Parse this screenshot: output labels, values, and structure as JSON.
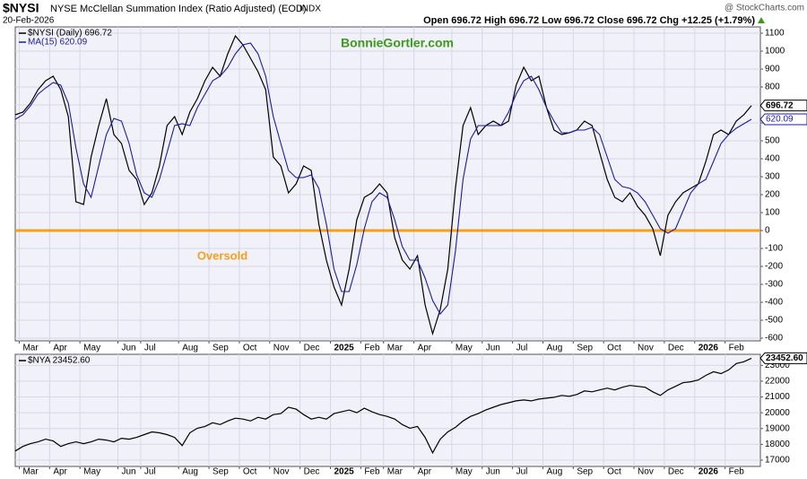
{
  "header": {
    "symbol": "$NYSI",
    "name": "NYSE McClellan Summation Index (Ratio Adjusted) (EOD)",
    "exchange": "INDX",
    "date": "20-Feb-2026",
    "source": "@ StockCharts.com",
    "quote": "Open 696.72   High 696.72   Low 696.72   Close 696.72   Chg +12.25 (+1.79%)"
  },
  "chart_data": [
    {
      "type": "line",
      "categories": [
        null,
        "Mar",
        null,
        null,
        null,
        "Apr",
        null,
        null,
        null,
        "May",
        null,
        null,
        null,
        null,
        "Jun",
        null,
        null,
        "Jul",
        null,
        null,
        null,
        null,
        "Aug",
        null,
        null,
        null,
        "Sep",
        null,
        null,
        null,
        "Oct",
        null,
        null,
        null,
        "Nov",
        null,
        null,
        null,
        "Dec",
        null,
        null,
        null,
        "2025",
        null,
        null,
        null,
        "Feb",
        null,
        null,
        "Mar",
        null,
        null,
        null,
        "Apr",
        null,
        null,
        null,
        null,
        "May",
        null,
        null,
        null,
        "Jun",
        null,
        null,
        null,
        "Jul",
        null,
        null,
        null,
        "Aug",
        null,
        null,
        null,
        "Sep",
        null,
        null,
        null,
        "Oct",
        null,
        null,
        null,
        "Nov",
        null,
        null,
        null,
        "Dec",
        null,
        null,
        null,
        "2026",
        null,
        null,
        null,
        "Feb",
        null,
        null,
        null
      ],
      "series": [
        {
          "name": "$NYSI (Daily) 696.72",
          "color": "#000000",
          "values": [
            645,
            660,
            710,
            785,
            835,
            860,
            785,
            635,
            160,
            145,
            410,
            585,
            735,
            535,
            485,
            335,
            285,
            145,
            210,
            360,
            585,
            635,
            535,
            660,
            735,
            835,
            910,
            860,
            985,
            1085,
            1035,
            960,
            885,
            785,
            410,
            360,
            210,
            260,
            360,
            335,
            35,
            -165,
            -315,
            -415,
            -215,
            60,
            185,
            210,
            260,
            210,
            -40,
            -165,
            -215,
            -140,
            -415,
            -575,
            -440,
            -215,
            235,
            585,
            685,
            535,
            585,
            610,
            585,
            610,
            810,
            910,
            835,
            860,
            685,
            560,
            535,
            545,
            560,
            610,
            585,
            435,
            285,
            185,
            160,
            210,
            135,
            85,
            10,
            -140,
            85,
            160,
            210,
            235,
            260,
            385,
            535,
            560,
            535,
            610,
            645,
            696.72
          ]
        },
        {
          "name": "MA(15) 620.09",
          "color": "#1c1c9c",
          "values": [
            620,
            645,
            695,
            760,
            795,
            825,
            810,
            710,
            460,
            260,
            185,
            360,
            535,
            625,
            610,
            485,
            310,
            210,
            185,
            285,
            435,
            585,
            595,
            585,
            685,
            760,
            835,
            860,
            910,
            985,
            1035,
            1045,
            985,
            860,
            635,
            485,
            335,
            295,
            295,
            310,
            235,
            35,
            -215,
            -340,
            -340,
            -190,
            10,
            160,
            210,
            185,
            60,
            -90,
            -165,
            -165,
            -265,
            -390,
            -465,
            -415,
            -115,
            285,
            510,
            585,
            585,
            585,
            585,
            660,
            760,
            835,
            860,
            785,
            685,
            610,
            545,
            545,
            560,
            560,
            575,
            535,
            410,
            285,
            245,
            235,
            210,
            160,
            85,
            10,
            -15,
            10,
            110,
            210,
            260,
            285,
            385,
            485,
            535,
            570,
            595,
            620.09
          ]
        }
      ],
      "ylim": [
        -615,
        1135
      ],
      "yticks": [
        -600,
        -500,
        -400,
        -300,
        -200,
        -100,
        0,
        100,
        200,
        300,
        400,
        500,
        600,
        700,
        800,
        900,
        1000,
        1100
      ],
      "grid": true,
      "hline": {
        "value": 0,
        "color": "#f5a01a"
      },
      "annotations": [
        {
          "text": "BonnieGortler.com",
          "color": "#3d9a1c"
        },
        {
          "text": "Oversold",
          "color": "#f5a01a"
        }
      ]
    },
    {
      "type": "line",
      "categories": [
        null,
        "Mar",
        null,
        null,
        null,
        "Apr",
        null,
        null,
        null,
        "May",
        null,
        null,
        null,
        null,
        "Jun",
        null,
        null,
        "Jul",
        null,
        null,
        null,
        null,
        "Aug",
        null,
        null,
        null,
        "Sep",
        null,
        null,
        null,
        "Oct",
        null,
        null,
        null,
        "Nov",
        null,
        null,
        null,
        "Dec",
        null,
        null,
        null,
        "2025",
        null,
        null,
        null,
        "Feb",
        null,
        null,
        "Mar",
        null,
        null,
        null,
        "Apr",
        null,
        null,
        null,
        null,
        "May",
        null,
        null,
        null,
        "Jun",
        null,
        null,
        null,
        "Jul",
        null,
        null,
        null,
        "Aug",
        null,
        null,
        null,
        "Sep",
        null,
        null,
        null,
        "Oct",
        null,
        null,
        null,
        "Nov",
        null,
        null,
        null,
        "Dec",
        null,
        null,
        null,
        "2026",
        null,
        null,
        null,
        "Feb",
        null,
        null,
        null
      ],
      "series": [
        {
          "name": "$NYA 23452.60",
          "color": "#000000",
          "last_label": "23452.60",
          "values": [
            17577,
            17866,
            18040,
            18154,
            18327,
            18212,
            17866,
            18040,
            18154,
            18040,
            18154,
            18327,
            18270,
            18154,
            18385,
            18327,
            18443,
            18616,
            18789,
            18731,
            18616,
            18443,
            17923,
            18731,
            19020,
            19135,
            19366,
            19251,
            19481,
            19654,
            19597,
            19481,
            19712,
            19597,
            19885,
            19943,
            20347,
            20231,
            19885,
            19597,
            19712,
            19597,
            19943,
            20058,
            20174,
            20000,
            20289,
            20058,
            19885,
            19770,
            19597,
            19251,
            19020,
            19135,
            18443,
            17462,
            18327,
            18789,
            19077,
            19481,
            19770,
            19943,
            20174,
            20347,
            20520,
            20635,
            20751,
            20808,
            20751,
            20866,
            20924,
            20981,
            21097,
            21039,
            21154,
            21385,
            21328,
            21443,
            21558,
            21443,
            21616,
            21731,
            21674,
            21616,
            21328,
            21097,
            21443,
            21674,
            21904,
            21962,
            22077,
            22366,
            22597,
            22481,
            22712,
            23116,
            23231,
            23452.6
          ]
        }
      ],
      "ylim": [
        16600,
        23700
      ],
      "yticks": [
        17000,
        18000,
        19000,
        20000,
        21000,
        22000,
        23000
      ],
      "grid": true
    }
  ]
}
